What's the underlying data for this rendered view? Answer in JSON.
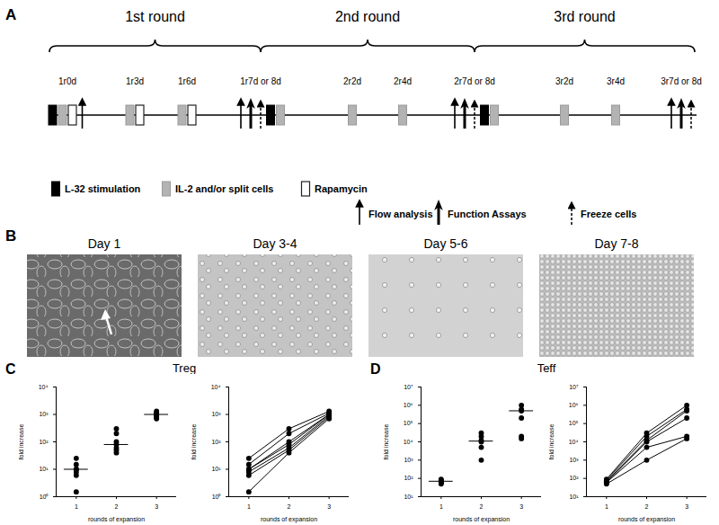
{
  "diagram": {
    "label": "A",
    "rounds": [
      {
        "label": "1st round",
        "from": "1r0d",
        "to": "1r7d or 8d"
      },
      {
        "label": "2nd round",
        "from": "1r7d or 8d",
        "to": "2r7d or 8d"
      },
      {
        "label": "3rd round",
        "from": "2r7d or 8d",
        "to": "3r7d or 8d"
      }
    ],
    "timepoints": [
      {
        "label": "1r0d",
        "events": [
          "L-32 stimulation",
          "IL-2 and/or split cells",
          "Rapamycin",
          "Flow analysis"
        ]
      },
      {
        "label": "1r3d",
        "events": [
          "IL-2 and/or split cells",
          "Rapamycin"
        ]
      },
      {
        "label": "1r6d",
        "events": [
          "IL-2 and/or split cells",
          "Rapamycin"
        ]
      },
      {
        "label": "1r7d or 8d",
        "events": [
          "Flow analysis",
          "Function Assays",
          "Freeze cells",
          "L-32 stimulation",
          "IL-2 and/or split cells"
        ]
      },
      {
        "label": "2r2d",
        "events": [
          "IL-2 and/or split cells"
        ]
      },
      {
        "label": "2r4d",
        "events": [
          "IL-2 and/or split cells"
        ]
      },
      {
        "label": "2r7d or 8d",
        "events": [
          "Flow analysis",
          "Function Assays",
          "Freeze cells",
          "L-32 stimulation",
          "IL-2 and/or split cells"
        ]
      },
      {
        "label": "3r2d",
        "events": [
          "IL-2 and/or split cells"
        ]
      },
      {
        "label": "3r4d",
        "events": [
          "IL-2 and/or split cells"
        ]
      },
      {
        "label": "3r7d or 8d",
        "events": [
          "Flow analysis",
          "Function Assays",
          "Freeze cells"
        ]
      }
    ],
    "legend": [
      "L-32 stimulation",
      "IL-2 and/or split cells",
      "Rapamycin",
      "Flow analysis",
      "Function Assays",
      "Freeze cells"
    ]
  },
  "images": {
    "label": "B",
    "titles": [
      "Day 1",
      "Day 3-4",
      "Day 5-6",
      "Day 7-8"
    ]
  },
  "panels": [
    {
      "label": "C",
      "title": "Treg"
    },
    {
      "label": "D",
      "title": "Teff"
    }
  ],
  "chart_data": [
    {
      "type": "scatter",
      "x": [
        1,
        2,
        3
      ],
      "series": [
        {
          "values": [
            1.5,
            40,
            700
          ]
        },
        {
          "values": [
            6,
            50,
            800
          ]
        },
        {
          "values": [
            8,
            60,
            900
          ]
        },
        {
          "values": [
            10,
            80,
            1000
          ]
        },
        {
          "values": [
            10,
            100,
            1000
          ]
        },
        {
          "values": [
            15,
            200,
            1100
          ]
        },
        {
          "values": [
            25,
            300,
            1300
          ]
        }
      ],
      "medians": [
        10,
        80,
        1000
      ],
      "xlabel": "rounds of expansion",
      "ylabel": "fold increase",
      "xlim": [
        0.5,
        3.5
      ],
      "xticks": [
        1,
        2,
        3
      ],
      "ylim": [
        1,
        10000
      ],
      "yticks": [
        {
          "value": 1,
          "label": "10⁰"
        },
        {
          "value": 10,
          "label": "10¹"
        },
        {
          "value": 100,
          "label": "10²"
        },
        {
          "value": 1000,
          "label": "10³"
        },
        {
          "value": 10000,
          "label": "10⁴"
        }
      ],
      "log": "y",
      "color": "#000000",
      "marker": "circle"
    },
    {
      "type": "line",
      "x": [
        1,
        2,
        3
      ],
      "series": [
        {
          "values": [
            1.5,
            40,
            700
          ]
        },
        {
          "values": [
            6,
            50,
            800
          ]
        },
        {
          "values": [
            8,
            60,
            900
          ]
        },
        {
          "values": [
            10,
            80,
            1000
          ]
        },
        {
          "values": [
            10,
            100,
            1000
          ]
        },
        {
          "values": [
            15,
            200,
            1100
          ]
        },
        {
          "values": [
            25,
            300,
            1300
          ]
        }
      ],
      "xlabel": "rounds of expansion",
      "ylabel": "fold increase",
      "xlim": [
        0.5,
        3.5
      ],
      "xticks": [
        1,
        2,
        3
      ],
      "ylim": [
        1,
        10000
      ],
      "yticks": [
        {
          "value": 1,
          "label": "10⁰"
        },
        {
          "value": 10,
          "label": "10¹"
        },
        {
          "value": 100,
          "label": "10²"
        },
        {
          "value": 1000,
          "label": "10³"
        },
        {
          "value": 10000,
          "label": "10⁴"
        }
      ],
      "log": "y",
      "color": "#000000",
      "marker": "circle"
    },
    {
      "type": "scatter",
      "x": [
        1,
        2,
        3
      ],
      "series": [
        {
          "values": [
            50,
            1000,
            15000
          ]
        },
        {
          "values": [
            60,
            5000,
            20000
          ]
        },
        {
          "values": [
            60,
            10000,
            200000
          ]
        },
        {
          "values": [
            70,
            12000,
            500000
          ]
        },
        {
          "values": [
            80,
            20000,
            600000
          ]
        },
        {
          "values": [
            90,
            30000,
            1000000
          ]
        }
      ],
      "medians": [
        70,
        11000,
        500000
      ],
      "xlabel": "rounds of expansion",
      "ylabel": "fold increase",
      "xlim": [
        0.5,
        3.5
      ],
      "xticks": [
        1,
        2,
        3
      ],
      "ylim": [
        10,
        10000000
      ],
      "yticks": [
        {
          "value": 10,
          "label": "10¹"
        },
        {
          "value": 100,
          "label": "10²"
        },
        {
          "value": 1000,
          "label": "10³"
        },
        {
          "value": 10000,
          "label": "10⁴"
        },
        {
          "value": 100000,
          "label": "10⁵"
        },
        {
          "value": 1000000,
          "label": "10⁶"
        },
        {
          "value": 10000000,
          "label": "10⁷"
        }
      ],
      "log": "y",
      "color": "#000000",
      "marker": "circle"
    },
    {
      "type": "line",
      "x": [
        1,
        2,
        3
      ],
      "series": [
        {
          "values": [
            50,
            1000,
            15000
          ]
        },
        {
          "values": [
            60,
            5000,
            20000
          ]
        },
        {
          "values": [
            60,
            10000,
            200000
          ]
        },
        {
          "values": [
            70,
            12000,
            500000
          ]
        },
        {
          "values": [
            80,
            20000,
            600000
          ]
        },
        {
          "values": [
            90,
            30000,
            1000000
          ]
        }
      ],
      "xlabel": "rounds of expansion",
      "ylabel": "fold increase",
      "xlim": [
        0.5,
        3.5
      ],
      "xticks": [
        1,
        2,
        3
      ],
      "ylim": [
        10,
        10000000
      ],
      "yticks": [
        {
          "value": 10,
          "label": "10¹"
        },
        {
          "value": 100,
          "label": "10²"
        },
        {
          "value": 1000,
          "label": "10³"
        },
        {
          "value": 10000,
          "label": "10⁴"
        },
        {
          "value": 100000,
          "label": "10⁵"
        },
        {
          "value": 1000000,
          "label": "10⁶"
        },
        {
          "value": 10000000,
          "label": "10⁷"
        }
      ],
      "log": "y",
      "color": "#000000",
      "marker": "circle"
    }
  ]
}
